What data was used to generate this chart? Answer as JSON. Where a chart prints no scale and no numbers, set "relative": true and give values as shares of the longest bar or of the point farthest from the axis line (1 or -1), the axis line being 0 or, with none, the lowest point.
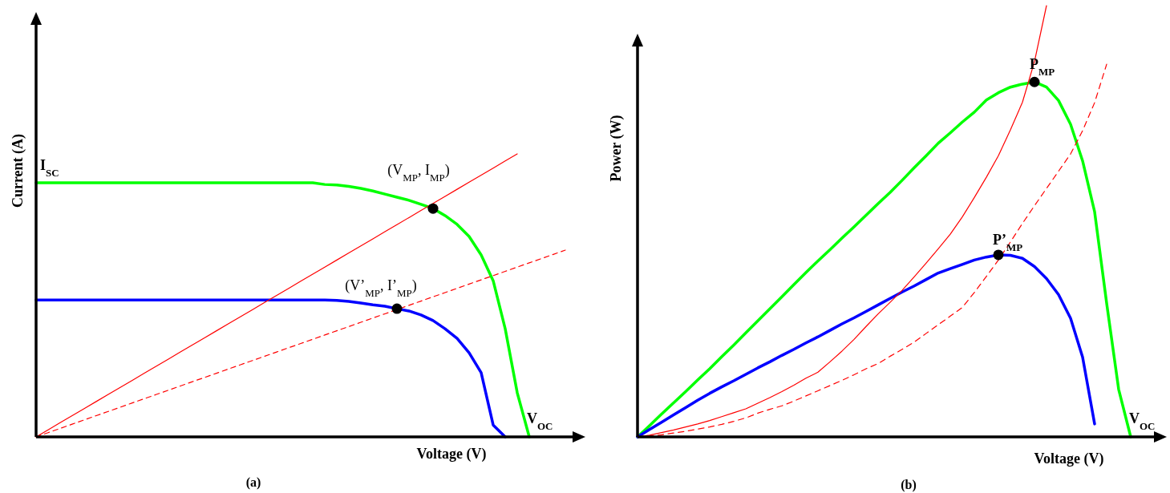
{
  "chart_data": [
    {
      "type": "line",
      "title": "(a)",
      "xlabel": "Voltage (V)",
      "ylabel": "Current (A)",
      "relative": true,
      "annotations": [
        "I$_{SC}$",
        {
          "text": "(V$_{MP}$, I$_{MP}$)",
          "y": 0.807
        },
        {
          "text": "(V’$_{MP}$, I’$_{MP}$)",
          "y": 0.453
        },
        "V$_{OC}$"
      ],
      "categories": [
        null,
        null,
        null,
        null,
        null,
        null,
        null,
        null,
        null,
        null,
        null,
        null,
        null,
        null,
        null,
        null,
        null,
        null,
        null,
        null,
        null,
        null,
        null,
        null,
        null,
        null,
        null,
        null,
        null,
        null,
        null,
        null,
        null,
        null,
        null,
        null,
        null,
        null,
        null,
        null,
        null,
        null,
        null,
        null,
        null
      ],
      "series": [
        {
          "color": "#00ff00",
          "values": [
            0.898,
            0.898,
            0.898,
            0.898,
            0.898,
            0.898,
            0.898,
            0.898,
            0.898,
            0.898,
            0.898,
            0.898,
            0.898,
            0.898,
            0.898,
            0.898,
            0.898,
            0.898,
            0.898,
            0.898,
            0.898,
            0.898,
            0.898,
            0.898,
            0.892,
            0.89,
            0.885,
            0.878,
            0.869,
            0.858,
            0.847,
            0.836,
            0.822,
            0.807,
            0.782,
            0.751,
            0.708,
            0.643,
            0.552,
            0.382,
            0.156,
            0,
            null,
            null,
            null
          ]
        },
        {
          "color": "#0000ff",
          "values": [
            0.484,
            0.484,
            0.484,
            0.484,
            0.484,
            0.484,
            0.484,
            0.484,
            0.484,
            0.484,
            0.484,
            0.484,
            0.484,
            0.484,
            0.484,
            0.484,
            0.484,
            0.484,
            0.484,
            0.484,
            0.484,
            0.484,
            0.484,
            0.484,
            0.484,
            0.482,
            0.479,
            0.473,
            0.467,
            0.462,
            0.453,
            0.445,
            0.431,
            0.411,
            0.382,
            0.348,
            0.297,
            0.227,
            0.042,
            0,
            null,
            null,
            null,
            null,
            null
          ]
        },
        {
          "color": "#ff0000",
          "line_style": "solid",
          "values": [
            0,
            0.025,
            0.05,
            0.075,
            0.1,
            0.125,
            0.15,
            0.175,
            0.2,
            0.225,
            0.25,
            0.275,
            0.3,
            0.325,
            0.35,
            0.375,
            0.4,
            0.425,
            0.45,
            0.475,
            0.5,
            0.525,
            0.55,
            0.575,
            0.6,
            0.625,
            0.65,
            0.675,
            0.7,
            0.725,
            0.75,
            0.775,
            0.8,
            0.825,
            0.85,
            0.875,
            0.9,
            0.925,
            0.95,
            0.975,
            1,
            null,
            null,
            null,
            null
          ]
        },
        {
          "color": "#ff0000",
          "line_style": "dashed",
          "values": [
            0,
            0.015,
            0.03,
            0.045,
            0.06,
            0.075,
            0.09,
            0.105,
            0.12,
            0.135,
            0.15,
            0.165,
            0.18,
            0.195,
            0.21,
            0.225,
            0.24,
            0.255,
            0.27,
            0.285,
            0.3,
            0.315,
            0.33,
            0.345,
            0.36,
            0.375,
            0.39,
            0.405,
            0.42,
            0.435,
            0.45,
            0.465,
            0.48,
            0.495,
            0.51,
            0.525,
            0.54,
            0.555,
            0.57,
            0.585,
            0.6,
            0.615,
            0.63,
            0.645,
            0.66
          ]
        }
      ]
    },
    {
      "type": "line",
      "title": "(b)",
      "xlabel": "Voltage (V)",
      "ylabel": "Power (W)",
      "relative": true,
      "annotations": [
        {
          "text": "P$_{MP}$",
          "y": 0.823
        },
        {
          "text": "P’$_{MP}$",
          "y": 0.422
        },
        "V$_{OC}$"
      ],
      "categories": [
        null,
        null,
        null,
        null,
        null,
        null,
        null,
        null,
        null,
        null,
        null,
        null,
        null,
        null,
        null,
        null,
        null,
        null,
        null,
        null,
        null,
        null,
        null,
        null,
        null,
        null,
        null,
        null,
        null,
        null,
        null,
        null,
        null,
        null,
        null,
        null,
        null,
        null,
        null,
        null,
        null,
        null,
        null,
        null,
        null
      ],
      "series": [
        {
          "color": "#00ff00",
          "values": [
            0,
            0.026,
            0.053,
            0.079,
            0.105,
            0.132,
            0.158,
            0.186,
            0.213,
            0.241,
            0.269,
            0.297,
            0.325,
            0.353,
            0.381,
            0.408,
            0.434,
            0.461,
            0.487,
            0.514,
            0.541,
            0.567,
            0.595,
            0.624,
            0.652,
            0.681,
            0.705,
            0.73,
            0.753,
            0.781,
            0.798,
            0.811,
            0.818,
            0.823,
            0.811,
            0.78,
            0.725,
            0.64,
            0.522,
            0.31,
            0.11,
            0,
            null,
            null,
            null
          ]
        },
        {
          "color": "#0000ff",
          "values": [
            0,
            0.017,
            0.034,
            0.051,
            0.068,
            0.085,
            0.101,
            0.116,
            0.13,
            0.145,
            0.16,
            0.174,
            0.189,
            0.203,
            0.218,
            0.232,
            0.247,
            0.262,
            0.276,
            0.291,
            0.306,
            0.321,
            0.336,
            0.35,
            0.365,
            0.38,
            0.39,
            0.4,
            0.41,
            0.417,
            0.422,
            0.421,
            0.414,
            0.395,
            0.367,
            0.33,
            0.275,
            0.185,
            0.03,
            null,
            null,
            null,
            null,
            null,
            null
          ]
        },
        {
          "color": "#ff0000",
          "line_style": "solid",
          "values": [
            0,
            0.004,
            0.01,
            0.016,
            0.023,
            0.03,
            0.038,
            0.047,
            0.056,
            0.065,
            0.078,
            0.091,
            0.105,
            0.12,
            0.136,
            0.15,
            0.174,
            0.199,
            0.226,
            0.256,
            0.285,
            0.312,
            0.34,
            0.371,
            0.403,
            0.436,
            0.47,
            0.51,
            0.555,
            0.602,
            0.652,
            0.712,
            0.776,
            0.87,
            1,
            null,
            null,
            null,
            null,
            null,
            null,
            null,
            null,
            null,
            null
          ]
        },
        {
          "color": "#ff0000",
          "line_style": "dashed",
          "values": [
            0,
            0.002,
            0.005,
            0.009,
            0.013,
            0.018,
            0.023,
            0.029,
            0.036,
            0.044,
            0.055,
            0.064,
            0.072,
            0.083,
            0.095,
            0.107,
            0.119,
            0.131,
            0.144,
            0.158,
            0.17,
            0.187,
            0.203,
            0.22,
            0.24,
            0.26,
            0.28,
            0.3,
            0.335,
            0.372,
            0.41,
            0.452,
            0.495,
            0.536,
            0.576,
            0.616,
            0.656,
            0.71,
            0.775,
            0.864,
            null,
            null,
            null,
            null,
            null
          ]
        }
      ]
    }
  ]
}
